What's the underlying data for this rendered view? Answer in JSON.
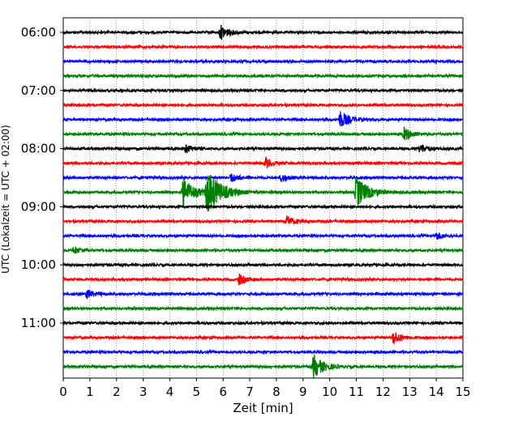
{
  "chart_data": {
    "type": "line",
    "title": "",
    "xlabel": "Zeit  [min]",
    "ylabel": "UTC (Lokalzeit = UTC + 02:00)",
    "xlim": [
      0,
      15
    ],
    "x_ticks": [
      "0",
      "1",
      "2",
      "3",
      "4",
      "5",
      "6",
      "7",
      "8",
      "9",
      "10",
      "11",
      "12",
      "13",
      "14",
      "15"
    ],
    "y_ticks": [
      "06:00",
      "07:00",
      "08:00",
      "09:00",
      "10:00",
      "11:00"
    ],
    "grid": "vertical dotted lines at each minute",
    "trace_interval_minutes": 15,
    "trace_colors": [
      "#000000",
      "#ff0000",
      "#0000ff",
      "#008000"
    ],
    "traces": [
      {
        "start": "06:00",
        "color": "#000000",
        "bursts": [
          {
            "t": 5.9,
            "amp": 1.0
          }
        ]
      },
      {
        "start": "06:15",
        "color": "#ff0000",
        "bursts": []
      },
      {
        "start": "06:30",
        "color": "#0000ff",
        "bursts": []
      },
      {
        "start": "06:45",
        "color": "#008000",
        "bursts": []
      },
      {
        "start": "07:00",
        "color": "#000000",
        "bursts": []
      },
      {
        "start": "07:15",
        "color": "#ff0000",
        "bursts": []
      },
      {
        "start": "07:30",
        "color": "#0000ff",
        "bursts": [
          {
            "t": 10.4,
            "amp": 1.2
          }
        ]
      },
      {
        "start": "07:45",
        "color": "#008000",
        "bursts": [
          {
            "t": 12.8,
            "amp": 0.9
          }
        ]
      },
      {
        "start": "08:00",
        "color": "#000000",
        "bursts": [
          {
            "t": 4.6,
            "amp": 0.6
          },
          {
            "t": 13.4,
            "amp": 0.6
          }
        ]
      },
      {
        "start": "08:15",
        "color": "#ff0000",
        "bursts": [
          {
            "t": 7.6,
            "amp": 0.7
          }
        ]
      },
      {
        "start": "08:30",
        "color": "#0000ff",
        "bursts": [
          {
            "t": 6.3,
            "amp": 0.6
          },
          {
            "t": 8.2,
            "amp": 0.6
          }
        ]
      },
      {
        "start": "08:45",
        "color": "#008000",
        "bursts": [
          {
            "t": 4.5,
            "amp": 2.0
          },
          {
            "t": 5.4,
            "amp": 3.0
          },
          {
            "t": 11.0,
            "amp": 2.2
          }
        ]
      },
      {
        "start": "09:00",
        "color": "#000000",
        "bursts": []
      },
      {
        "start": "09:15",
        "color": "#ff0000",
        "bursts": [
          {
            "t": 8.4,
            "amp": 0.7
          }
        ]
      },
      {
        "start": "09:30",
        "color": "#0000ff",
        "bursts": [
          {
            "t": 14.0,
            "amp": 0.5
          }
        ]
      },
      {
        "start": "09:45",
        "color": "#008000",
        "bursts": [
          {
            "t": 0.4,
            "amp": 0.5
          }
        ]
      },
      {
        "start": "10:00",
        "color": "#000000",
        "bursts": []
      },
      {
        "start": "10:15",
        "color": "#ff0000",
        "bursts": [
          {
            "t": 6.6,
            "amp": 0.7
          }
        ]
      },
      {
        "start": "10:30",
        "color": "#0000ff",
        "bursts": [
          {
            "t": 0.9,
            "amp": 0.6
          }
        ]
      },
      {
        "start": "10:45",
        "color": "#008000",
        "bursts": []
      },
      {
        "start": "11:00",
        "color": "#000000",
        "bursts": []
      },
      {
        "start": "11:15",
        "color": "#ff0000",
        "bursts": [
          {
            "t": 12.4,
            "amp": 0.9
          }
        ]
      },
      {
        "start": "11:30",
        "color": "#0000ff",
        "bursts": []
      },
      {
        "start": "11:45",
        "color": "#008000",
        "bursts": [
          {
            "t": 9.4,
            "amp": 1.6
          }
        ]
      }
    ]
  }
}
